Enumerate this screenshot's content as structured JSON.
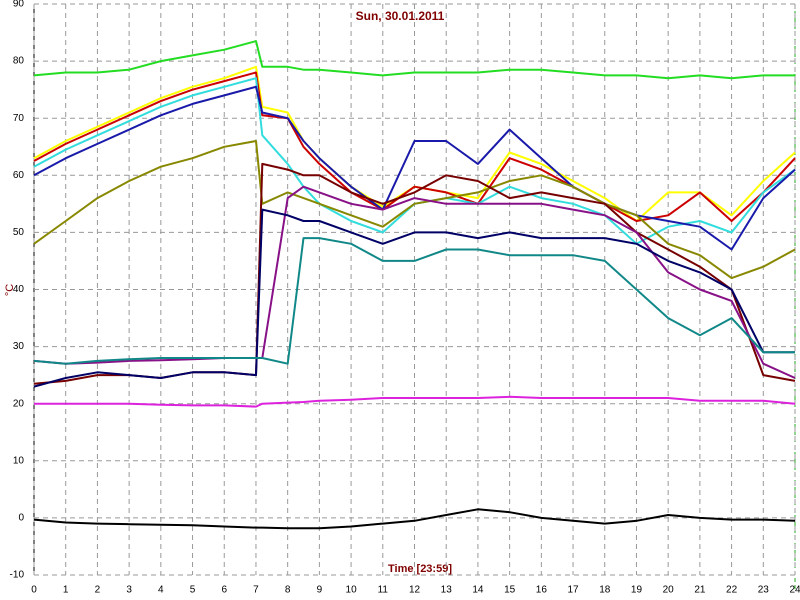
{
  "chart_data": {
    "type": "line",
    "title": "Sun, 30.01.2011",
    "xlabel": "Time [23:59]",
    "ylabel": "°C",
    "x": [
      0,
      1,
      2,
      3,
      4,
      5,
      6,
      7,
      7.2,
      8,
      8.5,
      9,
      10,
      11,
      12,
      13,
      14,
      15,
      16,
      17,
      18,
      19,
      20,
      21,
      22,
      23,
      24
    ],
    "xlim": [
      0,
      24
    ],
    "xticks": [
      0,
      1,
      2,
      3,
      4,
      5,
      6,
      7,
      8,
      9,
      10,
      11,
      12,
      13,
      14,
      15,
      16,
      17,
      18,
      19,
      20,
      21,
      22,
      23,
      24
    ],
    "ylim": [
      -10,
      90
    ],
    "yticks": [
      -10,
      0,
      10,
      20,
      30,
      40,
      50,
      60,
      70,
      80,
      90
    ],
    "grid": true,
    "series": [
      {
        "color": "#22dd22",
        "values": [
          77.5,
          78,
          78,
          78.5,
          80,
          81,
          82,
          83.5,
          79,
          79,
          78.5,
          78.5,
          78,
          77.5,
          78,
          78,
          78,
          78.5,
          78.5,
          78,
          77.5,
          77.5,
          77,
          77.5,
          77,
          77.5,
          77.5
        ]
      },
      {
        "color": "#ffff00",
        "values": [
          63,
          66,
          68.5,
          71,
          73.5,
          75.5,
          77,
          79,
          72,
          71,
          66,
          63,
          58,
          54.5,
          58,
          57,
          56,
          64,
          62,
          59,
          56,
          52,
          57,
          57,
          53,
          59,
          64
        ]
      },
      {
        "color": "#cc0000",
        "values": [
          62.5,
          65.5,
          68,
          70.5,
          73,
          75,
          76.5,
          78,
          70.5,
          70,
          65,
          62,
          57,
          54,
          58,
          57,
          55,
          63,
          61,
          58,
          55,
          52,
          53,
          57,
          52,
          57,
          63
        ]
      },
      {
        "color": "#33dddd",
        "values": [
          61.5,
          64.5,
          67,
          69.5,
          72,
          74,
          75.5,
          77,
          67,
          62,
          58,
          55,
          52,
          50,
          55,
          56,
          55,
          58,
          56,
          55,
          53,
          48,
          51,
          52,
          50,
          57,
          61
        ]
      },
      {
        "color": "#1a1aaa",
        "values": [
          60,
          63,
          65.5,
          68,
          70.5,
          72.5,
          74,
          75.5,
          71,
          70,
          66,
          63,
          58,
          54,
          66,
          66,
          62,
          68,
          63,
          58,
          55,
          53,
          52,
          51,
          47,
          56,
          61
        ]
      },
      {
        "color": "#888800",
        "values": [
          48,
          52,
          56,
          59,
          61.5,
          63,
          65,
          66,
          55,
          57,
          56,
          55,
          53,
          51,
          55,
          56,
          57,
          59,
          60,
          58,
          55,
          53,
          48,
          46,
          42,
          44,
          47
        ]
      },
      {
        "color": "#770000",
        "values": [
          23.5,
          24,
          25,
          25,
          24.5,
          25.5,
          25.5,
          25,
          62,
          61,
          60,
          60,
          57,
          55,
          57,
          60,
          59,
          56,
          57,
          56,
          55,
          50,
          47,
          44,
          40,
          25,
          24
        ]
      },
      {
        "color": "#881188",
        "values": [
          27.5,
          27,
          27.2,
          27.5,
          27.6,
          27.8,
          28,
          28,
          28,
          56,
          58,
          57,
          55,
          54,
          56,
          55,
          55,
          55,
          55,
          54,
          53,
          50,
          43,
          40,
          38,
          27,
          24.5
        ]
      },
      {
        "color": "#000066",
        "values": [
          23,
          24.5,
          25.5,
          25,
          24.5,
          25.5,
          25.5,
          25,
          54,
          53,
          52,
          52,
          50,
          48,
          50,
          50,
          49,
          50,
          49,
          49,
          49,
          48,
          45,
          43,
          40,
          29,
          29
        ]
      },
      {
        "color": "#118888",
        "values": [
          27.5,
          27,
          27.5,
          27.8,
          28,
          28,
          28,
          28,
          28,
          27,
          49,
          49,
          48,
          45,
          45,
          47,
          47,
          46,
          46,
          46,
          45,
          40,
          35,
          32,
          35,
          29,
          29
        ]
      },
      {
        "color": "#dd22dd",
        "values": [
          20,
          20,
          20,
          20,
          19.8,
          19.7,
          19.7,
          19.5,
          20,
          20.2,
          20.3,
          20.5,
          20.7,
          21,
          21,
          21,
          21,
          21.2,
          21,
          21,
          21,
          21,
          21,
          20.5,
          20.5,
          20.5,
          20
        ]
      },
      {
        "color": "#000000",
        "values": [
          -0.3,
          -0.8,
          -1,
          -1.1,
          -1.2,
          -1.3,
          -1.5,
          -1.7,
          -1.7,
          -1.8,
          -1.8,
          -1.8,
          -1.5,
          -1,
          -0.5,
          0.5,
          1.5,
          1,
          0,
          -0.5,
          -1,
          -0.5,
          0.5,
          0,
          -0.3,
          -0.3,
          -0.5
        ]
      }
    ]
  }
}
